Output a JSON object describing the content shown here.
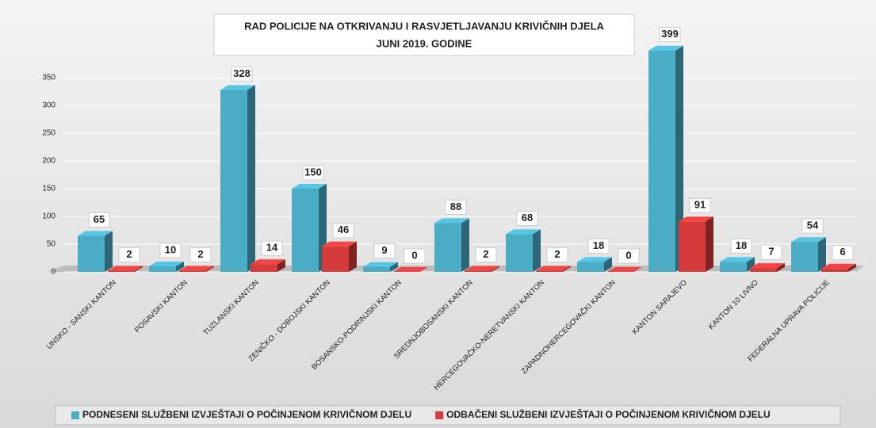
{
  "chart_data": {
    "type": "bar3d",
    "title": "RAD POLICIJE NA OTKRIVANJU I RASVJETLJAVANJU KRIVIČNIH DJELA",
    "subtitle": "JUNI 2019. GODINE",
    "categories": [
      "UNSKO - SANSKI KANTON",
      "POSAVSKI KANTON",
      "TUZLANSKI KANTON",
      "ZENIČKO - DOBOJSKI KANTON",
      "BOSANSKO-PODRINJSKI KANTON",
      "SREDNJOBOSANSKI KANTON",
      "HERCEGOVAČKO-NERETVANSKI KANTON",
      "ZAPADNOHERCEGOVAČKI KANTON",
      "KANTON SARAJEVO",
      "KANTON 10 LIVNO",
      "FEDERALNA UPRAVA POLICIJE"
    ],
    "series": [
      {
        "name": "PODNESENI SLUŽBENI IZVJEŠTAJI O POČINJENOM KRIVIČNOM DJELU",
        "color": "#4bacc6",
        "values": [
          65,
          10,
          328,
          150,
          9,
          88,
          68,
          18,
          399,
          18,
          54
        ]
      },
      {
        "name": "ODBAČENI SLUŽBENI IZVJEŠTAJI O POČINJENOM KRIVIČNOM DJELU",
        "color": "#d63b3b",
        "values": [
          2,
          2,
          14,
          46,
          0,
          2,
          2,
          0,
          91,
          7,
          6
        ]
      }
    ],
    "ylim": [
      0,
      400
    ],
    "yticks": [
      0,
      50,
      100,
      150,
      200,
      250,
      300,
      350
    ],
    "grid": true,
    "legend": "bottom"
  }
}
